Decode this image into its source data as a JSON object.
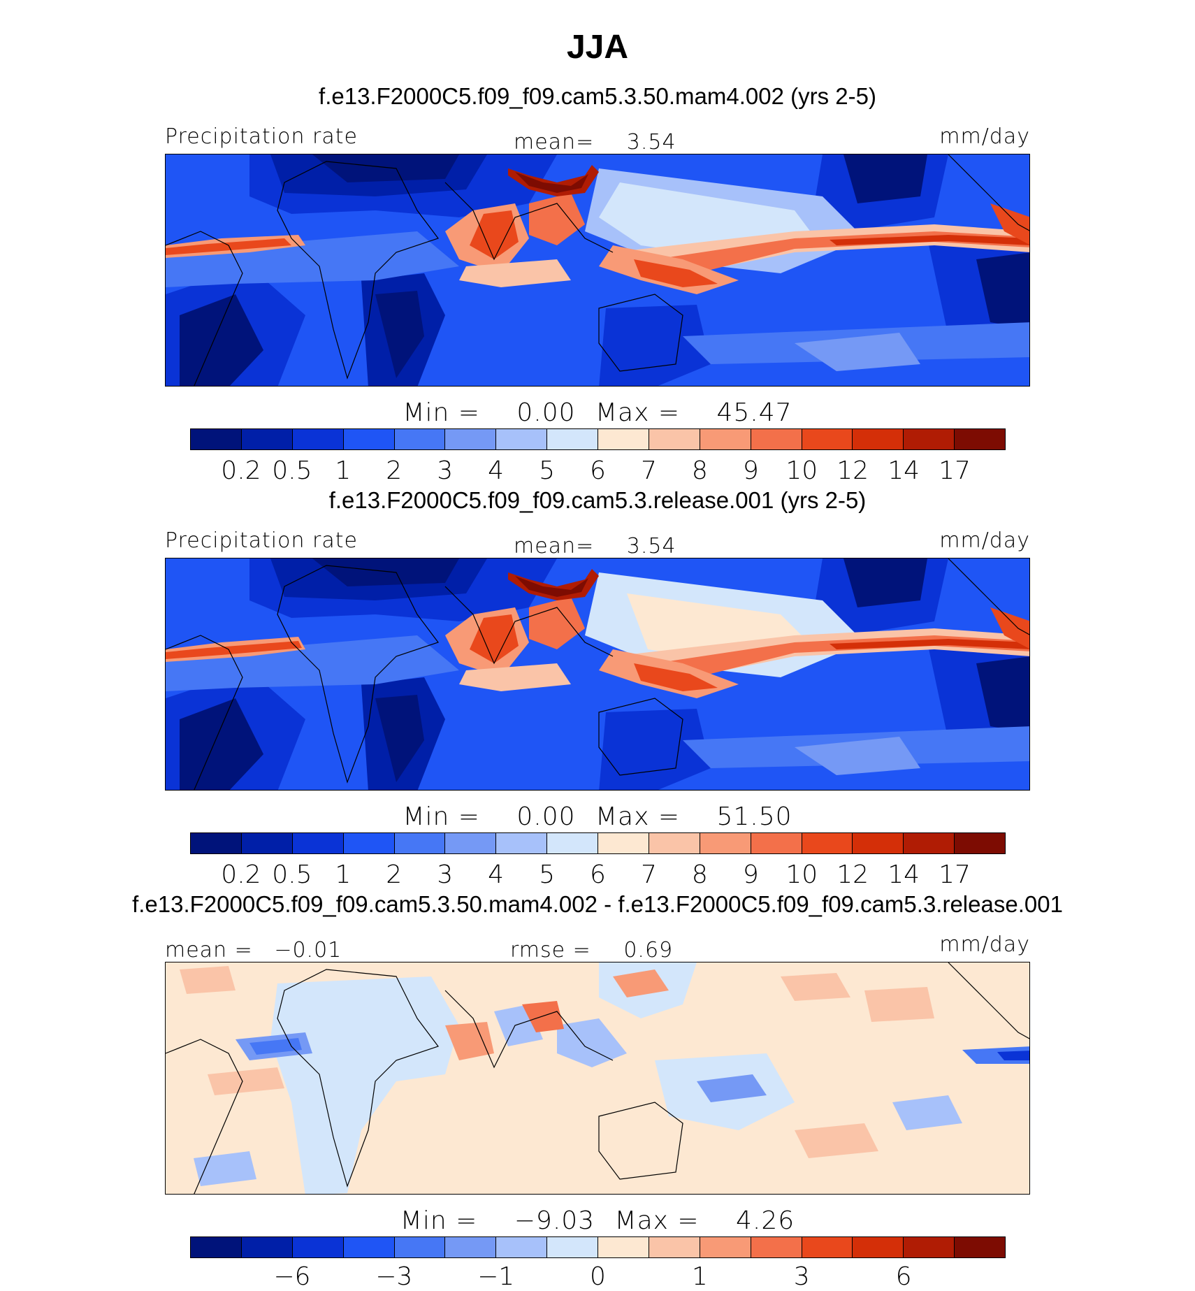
{
  "title": "JJA",
  "colors": {
    "precip_palette": [
      "#00137a",
      "#001fa8",
      "#0a33d6",
      "#1f55f5",
      "#4677f5",
      "#7599f5",
      "#a7c1fa",
      "#d3e6fb",
      "#fde8d2",
      "#fac4a8",
      "#f89a76",
      "#f3704a",
      "#e9481c",
      "#d42f08",
      "#b01c04",
      "#7d0c02"
    ],
    "diff_palette": [
      "#00137a",
      "#001fa8",
      "#0a33d6",
      "#1f55f5",
      "#4677f5",
      "#7599f5",
      "#a7c1fa",
      "#d3e6fb",
      "#fde8d2",
      "#fac4a8",
      "#f89a76",
      "#f3704a",
      "#e9481c",
      "#d42f08",
      "#b01c04",
      "#7d0c02"
    ]
  },
  "panels": [
    {
      "title": "f.e13.F2000C5.f09_f09.cam5.3.50.mam4.002 (yrs 2-5)",
      "left_label": "Precipitation rate",
      "center_label": "mean=",
      "center_value": "3.54",
      "units": "mm/day",
      "min_label": "Min  =",
      "min_value": "0.00",
      "max_label": "Max  =",
      "max_value": "45.47",
      "colorbar_ticks": [
        "0.2",
        "0.5",
        "1",
        "2",
        "3",
        "4",
        "5",
        "6",
        "7",
        "8",
        "9",
        "10",
        "12",
        "14",
        "17"
      ]
    },
    {
      "title": "f.e13.F2000C5.f09_f09.cam5.3.release.001 (yrs 2-5)",
      "left_label": "Precipitation rate",
      "center_label": "mean=",
      "center_value": "3.54",
      "units": "mm/day",
      "min_label": "Min  =",
      "min_value": "0.00",
      "max_label": "Max  =",
      "max_value": "51.50",
      "colorbar_ticks": [
        "0.2",
        "0.5",
        "1",
        "2",
        "3",
        "4",
        "5",
        "6",
        "7",
        "8",
        "9",
        "10",
        "12",
        "14",
        "17"
      ]
    },
    {
      "title": "f.e13.F2000C5.f09_f09.cam5.3.50.mam4.002 - f.e13.F2000C5.f09_f09.cam5.3.release.001",
      "left_label": "mean  =",
      "left_value": "−0.01",
      "center_label": "rmse  =",
      "center_value": "0.69",
      "units": "mm/day",
      "min_label": "Min  =",
      "min_value": "−9.03",
      "max_label": "Max  =",
      "max_value": "4.26",
      "colorbar_ticks": [
        "−6",
        "−3",
        "−1",
        "0",
        "1",
        "3",
        "6"
      ]
    }
  ]
}
